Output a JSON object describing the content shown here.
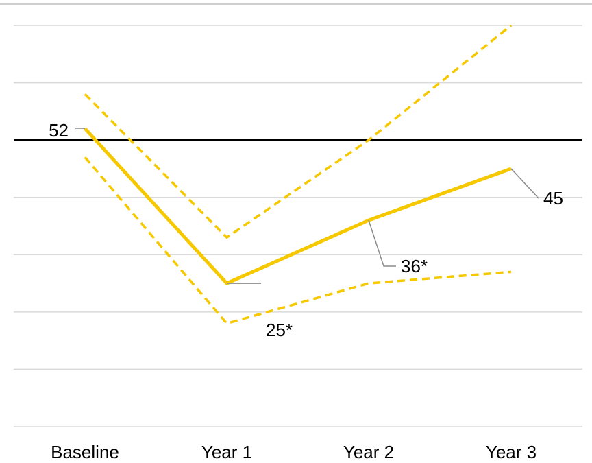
{
  "chart_data": {
    "type": "line",
    "categories": [
      "Baseline",
      "Year 1",
      "Year 2",
      "Year 3"
    ],
    "ylim": [
      0,
      70
    ],
    "grid": true,
    "reference_value": 50,
    "series": [
      {
        "role": "estimate",
        "style": "solid",
        "values": [
          52,
          25,
          36,
          45
        ]
      },
      {
        "role": "upper-bound",
        "style": "dashed",
        "values": [
          58,
          33,
          50,
          70
        ]
      },
      {
        "role": "lower-bound",
        "style": "dashed",
        "values": [
          47,
          18,
          25,
          27
        ]
      }
    ],
    "data_labels": [
      "52",
      "25*",
      "36*",
      "45"
    ]
  },
  "colors": {
    "series": "#F5C800",
    "grid": "#D9D9D9",
    "reference": "#000000",
    "leader": "#8C8C8C"
  }
}
